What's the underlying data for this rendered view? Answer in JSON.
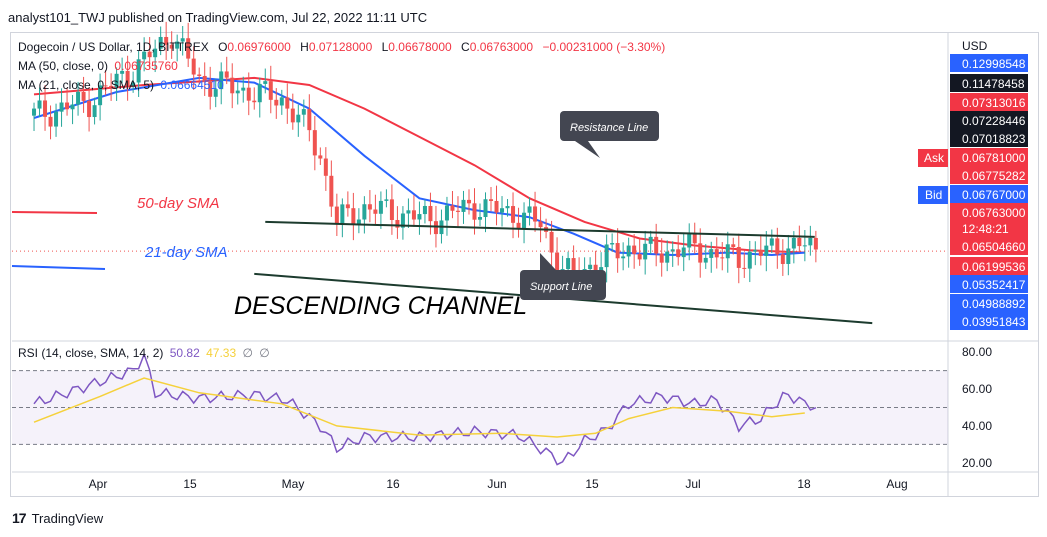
{
  "header": {
    "text": "analyst101_TWJ published on TradingView.com, Jul 22, 2022 11:11 UTC"
  },
  "legend": {
    "symbol": "Dogecoin / US Dollar, 1D, BITTREX",
    "ohlc": {
      "o_label": "O",
      "o": "0.06976000",
      "h_label": "H",
      "h": "0.07128000",
      "l_label": "L",
      "l": "0.06678000",
      "c_label": "C",
      "c": "0.06763000",
      "change": "−0.00231000 (−3.30%)"
    },
    "ma50": {
      "label": "MA (50, close, 0)",
      "value": "0.06735760"
    },
    "ma21": {
      "label": "MA (21, close, 0, SMA, 5)",
      "value": "0.06664510"
    },
    "rsi": {
      "label": "RSI (14, close, SMA, 14, 2)",
      "value": "50.82",
      "ma_value": "47.33",
      "sym1": "∅",
      "sym2": "∅"
    }
  },
  "price_axis": {
    "currency": "USD",
    "labels": [
      "0.12998548",
      "0.11478458",
      "0.07313016",
      "0.07228446",
      "0.07018823",
      "0.06781000",
      "0.06775282",
      "0.06767000",
      "0.06763000",
      "12:48:21",
      "0.06504660",
      "0.06199536",
      "0.05352417",
      "0.04988892",
      "0.03951843"
    ],
    "ask_label": "Ask",
    "bid_label": "Bid"
  },
  "rsi_axis": {
    "labels": [
      "80.00",
      "60.00",
      "40.00",
      "20.00"
    ]
  },
  "time_axis": {
    "labels": [
      "Apr",
      "15",
      "May",
      "16",
      "Jun",
      "15",
      "Jul",
      "18",
      "Aug"
    ]
  },
  "annotations": {
    "ma50_label": "50-day SMA",
    "ma21_label": "21-day SMA",
    "channel_title": "DESCENDING CHANNEL",
    "resistance_label": "Resistance Line",
    "support_label": "Support Line"
  },
  "footer": {
    "brand": "TradingView",
    "icon": "tradingview-logo-icon"
  },
  "colors": {
    "up": "#26a69a",
    "down": "#ef5350",
    "ma50": "#f23645",
    "ma21": "#2962ff",
    "rsi": "#7e57c2",
    "rsi_ma": "#f5d13b",
    "ask": "#f23645",
    "bid": "#2962ff",
    "label_box": "#434651",
    "axis_dark": "#131722",
    "axis_red": "#f23645",
    "axis_blue": "#2962ff"
  },
  "chart_data": {
    "type": "candlestick",
    "title": "Dogecoin / US Dollar, 1D, BITTREX",
    "x_range": [
      "2022-03-22",
      "2022-07-22"
    ],
    "price": {
      "ohlc_last": {
        "open": 0.06976,
        "high": 0.07128,
        "low": 0.06678,
        "close": 0.06763
      },
      "close_path": [
        [
          0,
          0.125
        ],
        [
          10,
          0.131
        ],
        [
          20,
          0.148
        ],
        [
          25,
          0.16
        ],
        [
          30,
          0.14
        ],
        [
          45,
          0.132
        ],
        [
          50,
          0.118
        ],
        [
          52,
          0.108
        ],
        [
          55,
          0.08
        ],
        [
          60,
          0.086
        ],
        [
          65,
          0.084
        ],
        [
          72,
          0.081
        ],
        [
          80,
          0.087
        ],
        [
          88,
          0.083
        ],
        [
          92,
          0.079
        ],
        [
          95,
          0.063
        ],
        [
          98,
          0.056
        ],
        [
          100,
          0.06
        ],
        [
          104,
          0.065
        ],
        [
          108,
          0.069
        ],
        [
          112,
          0.067
        ],
        [
          116,
          0.068
        ],
        [
          120,
          0.069
        ],
        [
          124,
          0.066
        ],
        [
          128,
          0.065
        ],
        [
          132,
          0.067
        ],
        [
          136,
          0.069
        ],
        [
          140,
          0.07
        ],
        [
          142,
          0.068
        ]
      ],
      "ma50_path": [
        [
          0,
          0.134
        ],
        [
          20,
          0.138
        ],
        [
          40,
          0.141
        ],
        [
          50,
          0.138
        ],
        [
          60,
          0.128
        ],
        [
          70,
          0.116
        ],
        [
          80,
          0.104
        ],
        [
          90,
          0.09
        ],
        [
          100,
          0.08
        ],
        [
          110,
          0.073
        ],
        [
          120,
          0.07
        ],
        [
          130,
          0.068
        ],
        [
          140,
          0.067
        ]
      ],
      "ma21_path": [
        [
          0,
          0.124
        ],
        [
          15,
          0.135
        ],
        [
          30,
          0.141
        ],
        [
          40,
          0.139
        ],
        [
          50,
          0.128
        ],
        [
          60,
          0.108
        ],
        [
          70,
          0.09
        ],
        [
          80,
          0.085
        ],
        [
          90,
          0.082
        ],
        [
          98,
          0.075
        ],
        [
          106,
          0.067
        ],
        [
          116,
          0.066
        ],
        [
          126,
          0.067
        ],
        [
          134,
          0.066
        ],
        [
          140,
          0.067
        ]
      ]
    },
    "rsi": {
      "levels": [
        70,
        50,
        30
      ],
      "ylim": [
        15,
        85
      ],
      "rsi_path": [
        [
          0,
          52
        ],
        [
          8,
          60
        ],
        [
          18,
          70
        ],
        [
          20,
          78
        ],
        [
          22,
          58
        ],
        [
          30,
          55
        ],
        [
          40,
          57
        ],
        [
          46,
          54
        ],
        [
          52,
          40
        ],
        [
          55,
          28
        ],
        [
          60,
          34
        ],
        [
          70,
          34
        ],
        [
          80,
          37
        ],
        [
          88,
          35
        ],
        [
          94,
          24
        ],
        [
          96,
          20
        ],
        [
          100,
          32
        ],
        [
          104,
          38
        ],
        [
          108,
          52
        ],
        [
          114,
          56
        ],
        [
          120,
          52
        ],
        [
          124,
          54
        ],
        [
          128,
          40
        ],
        [
          132,
          44
        ],
        [
          136,
          56
        ],
        [
          139,
          55
        ],
        [
          140,
          51
        ]
      ],
      "rsi_ma_path": [
        [
          0,
          42
        ],
        [
          12,
          56
        ],
        [
          20,
          66
        ],
        [
          30,
          58
        ],
        [
          45,
          52
        ],
        [
          55,
          40
        ],
        [
          70,
          35
        ],
        [
          85,
          36
        ],
        [
          95,
          34
        ],
        [
          102,
          36
        ],
        [
          108,
          44
        ],
        [
          116,
          50
        ],
        [
          126,
          48
        ],
        [
          134,
          45
        ],
        [
          140,
          47
        ]
      ],
      "value": 50.82,
      "ma_value": 47.33
    },
    "channel": {
      "resistance": [
        [
          42,
          0.08
        ],
        [
          120,
          0.072
        ]
      ],
      "support": [
        [
          40,
          0.058
        ],
        [
          125,
          0.038
        ]
      ]
    }
  }
}
